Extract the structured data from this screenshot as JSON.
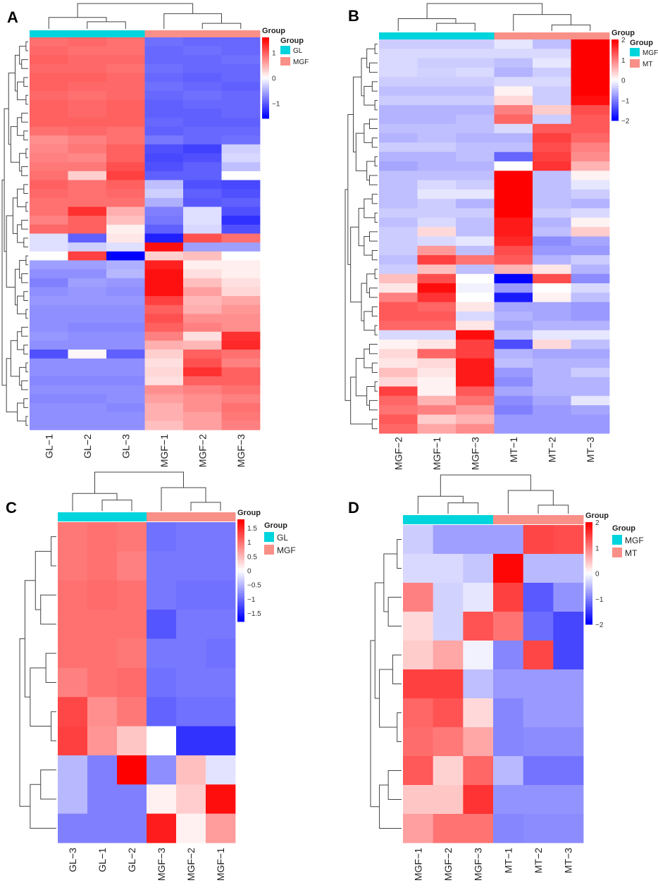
{
  "figure": {
    "panels": [
      "A",
      "B",
      "C",
      "D"
    ]
  },
  "colors": {
    "low": "#0000ff",
    "mid": "#ffffff",
    "high": "#ff0000",
    "group_cyan": "#00d4dc",
    "group_salmon": "#f89088"
  },
  "chart_data": [
    {
      "panel": "A",
      "type": "heatmap",
      "columns": [
        "GL−1",
        "GL−2",
        "GL−3",
        "MGF−1",
        "MGF−2",
        "MGF−3"
      ],
      "column_groups": [
        "GL",
        "GL",
        "GL",
        "MGF",
        "MGF",
        "MGF"
      ],
      "legend": {
        "title": "Group",
        "groups": [
          {
            "name": "GL",
            "color": "#00d4dc"
          },
          {
            "name": "MGF",
            "color": "#f89088"
          }
        ],
        "scale_ticks": [
          1,
          0,
          -1
        ],
        "range": [
          -1.6,
          1.6
        ]
      },
      "values": [
        [
          0.9,
          0.95,
          0.9,
          -0.9,
          -0.95,
          -0.95
        ],
        [
          0.95,
          0.9,
          0.9,
          -0.95,
          -0.9,
          -0.95
        ],
        [
          1.0,
          0.95,
          0.95,
          -0.95,
          -0.95,
          -0.9
        ],
        [
          0.95,
          0.95,
          0.9,
          -0.9,
          -0.95,
          -0.95
        ],
        [
          1.0,
          1.0,
          0.95,
          -0.95,
          -1.0,
          -0.95
        ],
        [
          1.0,
          0.95,
          0.95,
          -0.9,
          -0.95,
          -1.0
        ],
        [
          0.95,
          0.9,
          0.95,
          -0.95,
          -0.9,
          -0.95
        ],
        [
          1.0,
          0.95,
          1.0,
          -1.0,
          -0.95,
          -0.95
        ],
        [
          1.0,
          0.95,
          1.0,
          -1.0,
          -1.0,
          -0.95
        ],
        [
          1.0,
          1.0,
          1.0,
          -0.95,
          -1.0,
          -1.0
        ],
        [
          0.9,
          0.95,
          0.9,
          -1.0,
          -0.95,
          -0.95
        ],
        [
          0.7,
          0.8,
          0.9,
          -0.85,
          -0.95,
          -0.9
        ],
        [
          0.75,
          0.85,
          1.0,
          -1.1,
          -1.2,
          -0.3
        ],
        [
          0.8,
          0.75,
          1.0,
          -1.15,
          -1.1,
          -0.25
        ],
        [
          0.85,
          0.85,
          1.1,
          -1.1,
          -1.0,
          -0.4
        ],
        [
          0.9,
          0.3,
          1.2,
          -1.0,
          -1.0,
          0.0
        ],
        [
          1.0,
          0.9,
          1.0,
          -0.4,
          -1.1,
          -1.15
        ],
        [
          0.95,
          0.9,
          0.95,
          -0.3,
          -1.0,
          -1.1
        ],
        [
          0.9,
          0.9,
          0.9,
          -0.5,
          -1.05,
          -1.0
        ],
        [
          0.9,
          1.3,
          0.5,
          -0.8,
          -0.2,
          -1.1
        ],
        [
          0.8,
          1.0,
          0.4,
          -0.85,
          -0.2,
          -1.3
        ],
        [
          0.95,
          1.0,
          0.1,
          -1.0,
          -0.25,
          -1.1
        ],
        [
          -0.2,
          -1.0,
          0.15,
          -1.4,
          1.1,
          0.9
        ],
        [
          -0.2,
          -0.3,
          -0.2,
          1.5,
          -0.6,
          -0.6
        ],
        [
          0.0,
          1.2,
          -1.6,
          0.3,
          0.4,
          0.0
        ],
        [
          -0.6,
          -0.6,
          -0.5,
          1.4,
          0.1,
          0.1
        ],
        [
          -0.7,
          -0.7,
          -0.45,
          1.5,
          0.2,
          0.1
        ],
        [
          -0.8,
          -0.6,
          -0.65,
          1.5,
          0.4,
          0.2
        ],
        [
          -0.7,
          -0.65,
          -0.7,
          1.5,
          0.6,
          0.25
        ],
        [
          -0.65,
          -0.65,
          -0.65,
          1.2,
          0.45,
          0.55
        ],
        [
          -0.7,
          -0.7,
          -0.7,
          1.0,
          0.5,
          0.65
        ],
        [
          -0.7,
          -0.7,
          -0.7,
          1.1,
          0.7,
          0.7
        ],
        [
          -0.7,
          -0.75,
          -0.75,
          1.0,
          0.8,
          0.7
        ],
        [
          -0.65,
          -0.7,
          -0.7,
          0.8,
          0.2,
          1.3
        ],
        [
          -0.7,
          -0.7,
          -0.7,
          0.5,
          0.45,
          1.35
        ],
        [
          -1.1,
          0.05,
          -1.0,
          0.3,
          1.0,
          0.9
        ],
        [
          -0.7,
          -0.7,
          -0.7,
          0.2,
          1.1,
          0.8
        ],
        [
          -0.7,
          -0.7,
          -0.7,
          0.25,
          1.3,
          1.0
        ],
        [
          -0.75,
          -0.75,
          -0.75,
          0.2,
          1.0,
          1.0
        ],
        [
          -0.7,
          -0.7,
          -0.7,
          0.7,
          0.8,
          0.9
        ],
        [
          -0.75,
          -0.75,
          -0.7,
          0.6,
          0.7,
          0.8
        ],
        [
          -0.7,
          -0.7,
          -0.75,
          0.5,
          0.7,
          0.9
        ],
        [
          -0.7,
          -0.7,
          -0.7,
          0.5,
          0.6,
          0.85
        ],
        [
          -0.7,
          -0.7,
          -0.7,
          0.4,
          0.6,
          0.8
        ]
      ]
    },
    {
      "panel": "B",
      "type": "heatmap",
      "columns": [
        "MGF−2",
        "MGF−1",
        "MGF−3",
        "MT−1",
        "MT−2",
        "MT−3"
      ],
      "column_groups": [
        "MGF",
        "MGF",
        "MGF",
        "MT",
        "MT",
        "MT"
      ],
      "legend": {
        "title": "Group",
        "groups": [
          {
            "name": "MGF",
            "color": "#00d4dc"
          },
          {
            "name": "MT",
            "color": "#f89088"
          }
        ],
        "scale_ticks": [
          2,
          1,
          0,
          -1,
          -2
        ],
        "range": [
          -2,
          2
        ]
      },
      "values": [
        [
          -0.4,
          -0.4,
          -0.4,
          -0.2,
          -0.5,
          2.0
        ],
        [
          -0.3,
          -0.3,
          -0.3,
          -0.3,
          -0.3,
          2.0
        ],
        [
          -0.3,
          -0.4,
          -0.4,
          -0.5,
          -0.2,
          2.0
        ],
        [
          -0.3,
          -0.35,
          -0.3,
          -0.6,
          -0.4,
          2.0
        ],
        [
          -0.4,
          -0.4,
          -0.4,
          -0.3,
          -0.3,
          2.0
        ],
        [
          -0.5,
          -0.5,
          -0.5,
          0.1,
          -0.4,
          2.0
        ],
        [
          -0.4,
          -0.4,
          -0.4,
          0.3,
          -0.4,
          1.9
        ],
        [
          -0.6,
          -0.6,
          -0.6,
          1.0,
          0.4,
          1.4
        ],
        [
          -0.6,
          -0.6,
          -0.5,
          1.2,
          -0.4,
          1.3
        ],
        [
          -0.5,
          -0.5,
          -0.5,
          -0.3,
          1.3,
          1.3
        ],
        [
          -0.6,
          -0.5,
          -0.6,
          -0.6,
          1.5,
          1.2
        ],
        [
          -0.4,
          -0.4,
          -0.5,
          -0.5,
          1.4,
          1.0
        ],
        [
          -0.6,
          -0.6,
          -0.5,
          -1.2,
          1.5,
          0.9
        ],
        [
          -0.7,
          -0.6,
          -0.6,
          0.0,
          1.6,
          0.6
        ],
        [
          -0.5,
          -0.5,
          -0.5,
          2.0,
          -0.5,
          0.1
        ],
        [
          -0.5,
          -0.3,
          -0.4,
          2.0,
          -0.5,
          -0.2
        ],
        [
          -0.5,
          -0.2,
          -0.2,
          2.0,
          -0.5,
          -0.4
        ],
        [
          -0.5,
          -0.4,
          -0.6,
          2.0,
          -0.5,
          -0.6
        ],
        [
          -0.4,
          -0.4,
          -0.4,
          2.0,
          -0.4,
          -0.3
        ],
        [
          -0.5,
          -0.3,
          -0.5,
          1.8,
          -0.6,
          0.1
        ],
        [
          -0.4,
          0.3,
          -0.5,
          1.8,
          -0.5,
          0.4
        ],
        [
          -0.4,
          -0.3,
          -0.2,
          1.7,
          -0.9,
          -0.7
        ],
        [
          -0.4,
          0.8,
          -0.5,
          1.4,
          -0.8,
          -0.8
        ],
        [
          -0.5,
          1.5,
          1.1,
          1.3,
          -0.6,
          -0.4
        ],
        [
          -0.4,
          0.5,
          -0.5,
          0.6,
          0.2,
          -0.6
        ],
        [
          0.5,
          1.4,
          0.0,
          -2.0,
          1.4,
          -0.9
        ],
        [
          0.2,
          1.9,
          -0.1,
          -0.8,
          0.0,
          -0.3
        ],
        [
          1.0,
          1.6,
          0.0,
          -1.8,
          0.1,
          -0.5
        ],
        [
          1.3,
          1.2,
          0.2,
          -0.7,
          -0.7,
          -0.8
        ],
        [
          1.3,
          1.3,
          -0.3,
          -0.6,
          -0.7,
          -0.8
        ],
        [
          1.2,
          1.2,
          0.2,
          -0.7,
          -0.6,
          -0.6
        ],
        [
          -0.3,
          -0.3,
          1.9,
          -0.5,
          -0.2,
          -0.2
        ],
        [
          0.1,
          0.2,
          1.5,
          -1.4,
          0.3,
          -0.5
        ],
        [
          0.3,
          1.2,
          1.5,
          -0.6,
          -0.7,
          -0.7
        ],
        [
          0.2,
          0.3,
          1.8,
          -0.5,
          -0.6,
          -0.6
        ],
        [
          0.5,
          0.2,
          1.8,
          -0.8,
          -0.6,
          -0.4
        ],
        [
          0.3,
          0.1,
          1.8,
          -0.9,
          -0.6,
          -0.6
        ],
        [
          1.5,
          0.1,
          1.3,
          -0.7,
          -0.6,
          -0.6
        ],
        [
          1.2,
          0.6,
          1.1,
          -0.9,
          -0.7,
          -0.2
        ],
        [
          1.1,
          1.0,
          0.8,
          -1.0,
          -0.8,
          -0.7
        ],
        [
          1.3,
          0.4,
          0.6,
          -0.8,
          -0.8,
          -0.8
        ],
        [
          1.2,
          0.7,
          0.9,
          -0.8,
          -0.8,
          -0.8
        ]
      ]
    },
    {
      "panel": "C",
      "type": "heatmap",
      "columns": [
        "GL−3",
        "GL−1",
        "GL−2",
        "MGF−3",
        "MGF−2",
        "MGF−1"
      ],
      "column_groups": [
        "GL",
        "GL",
        "GL",
        "MGF",
        "MGF",
        "MGF"
      ],
      "legend": {
        "title": "Group",
        "groups": [
          {
            "name": "GL",
            "color": "#00d4dc"
          },
          {
            "name": "MGF",
            "color": "#f89088"
          }
        ],
        "scale_ticks": [
          "1.5",
          "1",
          "0.5",
          "0",
          "−0.5",
          "−1",
          "−1.5"
        ],
        "range": [
          -1.8,
          1.8
        ]
      },
      "values": [
        [
          0.95,
          1.0,
          0.95,
          -1.0,
          -0.95,
          -0.95
        ],
        [
          0.95,
          1.0,
          0.9,
          -0.95,
          -0.95,
          -0.95
        ],
        [
          1.0,
          1.05,
          1.0,
          -0.95,
          -1.0,
          -1.0
        ],
        [
          1.0,
          1.0,
          1.0,
          -1.2,
          -0.95,
          -0.95
        ],
        [
          1.0,
          1.0,
          0.95,
          -0.95,
          -0.95,
          -1.0
        ],
        [
          0.9,
          1.0,
          1.05,
          -1.0,
          -0.95,
          -0.95
        ],
        [
          1.3,
          0.8,
          0.95,
          -1.1,
          -1.0,
          -1.0
        ],
        [
          1.35,
          0.75,
          0.4,
          0.0,
          -1.45,
          -1.45
        ],
        [
          -0.5,
          -0.9,
          1.8,
          -0.8,
          0.45,
          -0.2
        ],
        [
          -0.5,
          -0.9,
          -0.9,
          0.1,
          0.35,
          1.7
        ],
        [
          -0.9,
          -0.9,
          -0.9,
          1.6,
          0.1,
          0.7
        ]
      ]
    },
    {
      "panel": "D",
      "type": "heatmap",
      "columns": [
        "MGF−1",
        "MGF−2",
        "MGF−3",
        "MT−1",
        "MT−2",
        "MT−3"
      ],
      "column_groups": [
        "MGF",
        "MGF",
        "MGF",
        "MT",
        "MT",
        "MT"
      ],
      "legend": {
        "title": "Group",
        "groups": [
          {
            "name": "MGF",
            "color": "#00d4dc"
          },
          {
            "name": "MT",
            "color": "#f89088"
          }
        ],
        "scale_ticks": [
          2,
          1,
          0,
          -1,
          -2
        ],
        "range": [
          -2,
          2
        ]
      },
      "values": [
        [
          -0.4,
          -0.75,
          -0.75,
          -0.75,
          1.45,
          1.4
        ],
        [
          -0.3,
          -0.3,
          -0.45,
          1.95,
          -0.55,
          -0.55
        ],
        [
          1.0,
          -0.35,
          -0.2,
          1.5,
          -1.3,
          -0.85
        ],
        [
          0.3,
          -0.35,
          1.35,
          1.1,
          -1.15,
          -1.45
        ],
        [
          0.4,
          0.7,
          -0.1,
          -0.95,
          1.45,
          -1.45
        ],
        [
          1.5,
          1.5,
          -0.5,
          -0.8,
          -0.8,
          -0.8
        ],
        [
          1.2,
          1.35,
          0.3,
          -0.95,
          -0.8,
          -0.8
        ],
        [
          1.15,
          1.05,
          0.7,
          -0.95,
          -0.9,
          -0.9
        ],
        [
          1.3,
          0.35,
          1.2,
          -0.55,
          -1.1,
          -1.1
        ],
        [
          0.45,
          0.45,
          1.6,
          -0.85,
          -0.85,
          -0.85
        ],
        [
          0.75,
          1.1,
          1.1,
          -0.95,
          -0.9,
          -0.9
        ]
      ]
    }
  ]
}
